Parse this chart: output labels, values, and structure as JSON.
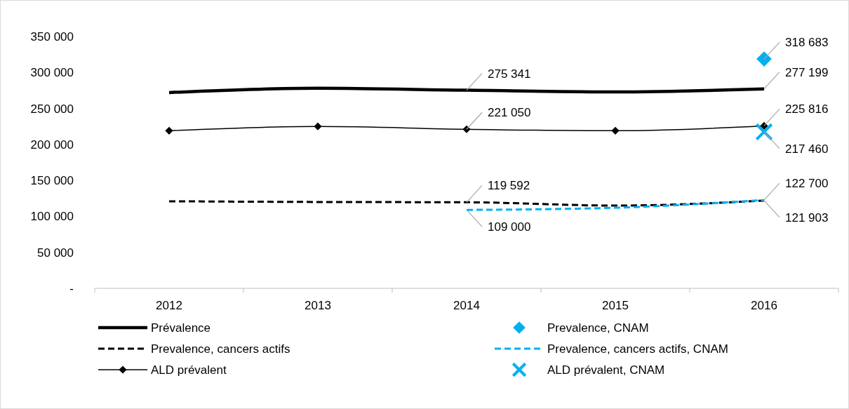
{
  "chart_data": {
    "type": "line",
    "categories": [
      "2012",
      "2013",
      "2014",
      "2015",
      "2016"
    ],
    "ylim": [
      0,
      350000
    ],
    "yticks": [
      {
        "value": 0,
        "label": "-"
      },
      {
        "value": 50000,
        "label": "50 000"
      },
      {
        "value": 100000,
        "label": "100 000"
      },
      {
        "value": 150000,
        "label": "150 000"
      },
      {
        "value": 200000,
        "label": "200 000"
      },
      {
        "value": 250000,
        "label": "250 000"
      },
      {
        "value": 300000,
        "label": "300 000"
      },
      {
        "value": 350000,
        "label": "350 000"
      }
    ],
    "grid": false,
    "legend": "bottom",
    "series": [
      {
        "name": "Prévalence",
        "type": "line",
        "color": "#000000",
        "line_style": "solid",
        "marker": "none",
        "values": [
          272000,
          278000,
          275341,
          273000,
          277199
        ],
        "value_labels": [
          null,
          null,
          "275 341",
          null,
          "277 199"
        ]
      },
      {
        "name": "Prevalence, CNAM",
        "type": "scatter",
        "color": "#00b0f0",
        "marker": "diamond",
        "values": [
          null,
          null,
          null,
          null,
          318683
        ],
        "value_labels": [
          null,
          null,
          null,
          null,
          "318 683"
        ]
      },
      {
        "name": "Prevalence, cancers actifs",
        "type": "line",
        "color": "#000000",
        "line_style": "dashed",
        "marker": "none",
        "values": [
          121000,
          120000,
          119592,
          115000,
          121903
        ],
        "value_labels": [
          null,
          null,
          "119 592",
          null,
          "121 903"
        ]
      },
      {
        "name": "Prevalence, cancers actifs, CNAM",
        "type": "line",
        "color": "#00b0f0",
        "line_style": "dashed",
        "marker": "none",
        "values": [
          null,
          null,
          109000,
          112000,
          122700
        ],
        "value_labels": [
          null,
          null,
          "109 000",
          null,
          "122 700"
        ]
      },
      {
        "name": "ALD prévalent",
        "type": "line",
        "color": "#000000",
        "line_style": "solid",
        "marker": "diamond",
        "values": [
          219000,
          225000,
          221050,
          219000,
          225816
        ],
        "value_labels": [
          null,
          null,
          "221 050",
          null,
          "225 816"
        ]
      },
      {
        "name": "ALD prévalent, CNAM",
        "type": "scatter",
        "color": "#00b0f0",
        "marker": "cross",
        "values": [
          null,
          null,
          null,
          null,
          217460
        ],
        "value_labels": [
          null,
          null,
          null,
          null,
          "217 460"
        ]
      }
    ]
  }
}
